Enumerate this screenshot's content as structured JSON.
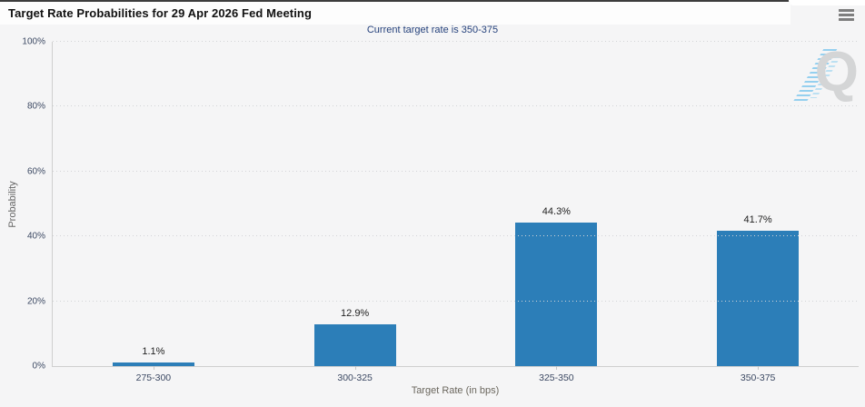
{
  "header": {
    "title": "Target Rate Probabilities for 29 Apr 2026 Fed Meeting"
  },
  "menu": {
    "icon": "hamburger-menu-icon"
  },
  "chart_data": {
    "type": "bar",
    "title": "Target Rate Probabilities for 29 Apr 2026 Fed Meeting",
    "subtitle": "Current target rate is 350-375",
    "categories": [
      "275-300",
      "300-325",
      "325-350",
      "350-375"
    ],
    "values": [
      1.1,
      12.9,
      44.3,
      41.7
    ],
    "value_labels": [
      "1.1%",
      "12.9%",
      "44.3%",
      "41.7%"
    ],
    "xlabel": "Target Rate (in bps)",
    "ylabel": "Probability",
    "ylim": [
      0,
      100
    ],
    "yticks": [
      0,
      20,
      40,
      60,
      80,
      100
    ],
    "ytick_labels": [
      "0%",
      "20%",
      "40%",
      "60%",
      "80%",
      "100%"
    ],
    "grid": "horizontal-dotted",
    "legend": "none",
    "bar_color": "#2c7eb8"
  },
  "watermark": {
    "letter": "Q"
  },
  "colors": {
    "bar": "#2c7eb8",
    "subtitle_text": "#26427c",
    "axis_label_text": "#3c4963",
    "background": "#f5f5f6",
    "header_background": "#fdfdfd",
    "top_border": "#3d3d3d"
  }
}
